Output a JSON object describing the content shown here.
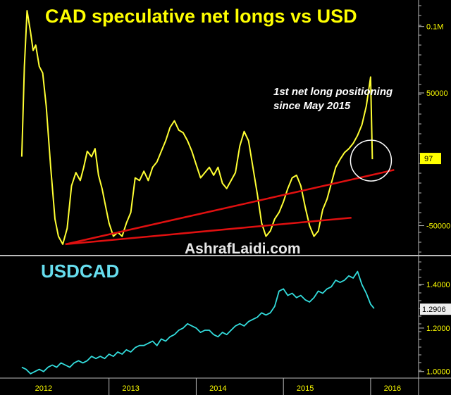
{
  "colors": {
    "background": "#000000",
    "positions_line": "#ffff33",
    "usdcad_line": "#33dddd",
    "trend_line": "#e01010",
    "title": "#ffff00",
    "usdcad_title": "#66ddee",
    "annotation": "#ffffff",
    "axis_text": "#ffff00",
    "divider": "#bbbbbb",
    "tag_bg": "#ffff00",
    "tag_text": "#000000",
    "usdcad_tag_bg": "#eeeeee"
  },
  "chart_data": [
    {
      "type": "line",
      "title": "CAD speculative net longs vs USD",
      "annotation": "1st net long positioning since May 2015",
      "annotation_lines": [
        "1st net long positioning",
        "since May 2015"
      ],
      "watermark": "AshrafLaidi.com",
      "last_value_tag": "97",
      "y_ticks": [
        {
          "value": 100000,
          "label": "0.1M"
        },
        {
          "value": 50000,
          "label": "50000"
        },
        {
          "value": -50000,
          "label": "-50000"
        }
      ],
      "ylim": [
        -72000,
        120000
      ],
      "series": [
        {
          "x": [
            2012.0,
            2012.03,
            2012.06,
            2012.1,
            2012.13,
            2012.16,
            2012.2,
            2012.24,
            2012.28,
            2012.33,
            2012.38,
            2012.42,
            2012.47,
            2012.52,
            2012.57,
            2012.62,
            2012.67,
            2012.71,
            2012.75,
            2012.8,
            2012.84,
            2012.88,
            2012.92,
            2012.96,
            2013.0,
            2013.05,
            2013.1,
            2013.15,
            2013.2,
            2013.25,
            2013.3,
            2013.35,
            2013.4,
            2013.45,
            2013.5,
            2013.55,
            2013.6,
            2013.65,
            2013.7,
            2013.75,
            2013.8,
            2013.85,
            2013.9,
            2013.95,
            2014.0,
            2014.05,
            2014.1,
            2014.15,
            2014.2,
            2014.25,
            2014.3,
            2014.35,
            2014.4,
            2014.45,
            2014.5,
            2014.55,
            2014.6,
            2014.65,
            2014.7,
            2014.75,
            2014.8,
            2014.85,
            2014.9,
            2014.95,
            2015.0,
            2015.05,
            2015.1,
            2015.15,
            2015.2,
            2015.25,
            2015.3,
            2015.35,
            2015.4,
            2015.45,
            2015.5,
            2015.55,
            2015.6,
            2015.65,
            2015.7,
            2015.75,
            2015.8,
            2015.85,
            2015.9,
            2015.95,
            2016.0,
            2016.02
          ],
          "y": [
            2000,
            70000,
            112000,
            96000,
            82000,
            86000,
            70000,
            65000,
            40000,
            -5000,
            -45000,
            -58000,
            -64000,
            -52000,
            -20000,
            -10000,
            -16000,
            -6000,
            6000,
            2000,
            8000,
            -12000,
            -22000,
            -35000,
            -48000,
            -58000,
            -55000,
            -58000,
            -48000,
            -40000,
            -14000,
            -16000,
            -9000,
            -16000,
            -6000,
            -2000,
            6000,
            14000,
            24000,
            29000,
            22000,
            20000,
            14000,
            6000,
            -4000,
            -14000,
            -10000,
            -6000,
            -12000,
            -6000,
            -18000,
            -22000,
            -16000,
            -10000,
            10000,
            21000,
            14000,
            -6000,
            -26000,
            -48000,
            -58000,
            -54000,
            -45000,
            -40000,
            -32000,
            -22000,
            -14000,
            -12000,
            -20000,
            -36000,
            -50000,
            -58000,
            -54000,
            -38000,
            -30000,
            -18000,
            -6000,
            0,
            5000,
            8000,
            12000,
            18000,
            26000,
            40000,
            62000,
            97
          ]
        }
      ],
      "trendlines": [
        {
          "from": [
            2012.5,
            -64000
          ],
          "to": [
            2016.27,
            -8000
          ]
        },
        {
          "from": [
            2012.5,
            -64000
          ],
          "to": [
            2015.78,
            -44000
          ]
        }
      ]
    },
    {
      "type": "line",
      "title": "USDCAD",
      "last_value_tag": "1.2906",
      "y_ticks": [
        {
          "value": 1.4,
          "label": "1.4000"
        },
        {
          "value": 1.2,
          "label": "1.2000"
        },
        {
          "value": 1.0,
          "label": "1.0000"
        }
      ],
      "ylim": [
        0.97,
        1.53
      ],
      "series": [
        {
          "x": [
            2012.0,
            2012.05,
            2012.1,
            2012.15,
            2012.2,
            2012.25,
            2012.3,
            2012.35,
            2012.4,
            2012.45,
            2012.5,
            2012.55,
            2012.6,
            2012.65,
            2012.7,
            2012.75,
            2012.8,
            2012.85,
            2012.9,
            2012.95,
            2013.0,
            2013.05,
            2013.1,
            2013.15,
            2013.2,
            2013.25,
            2013.3,
            2013.35,
            2013.4,
            2013.45,
            2013.5,
            2013.55,
            2013.6,
            2013.65,
            2013.7,
            2013.75,
            2013.8,
            2013.85,
            2013.9,
            2013.95,
            2014.0,
            2014.05,
            2014.1,
            2014.15,
            2014.2,
            2014.25,
            2014.3,
            2014.35,
            2014.4,
            2014.45,
            2014.5,
            2014.55,
            2014.6,
            2014.65,
            2014.7,
            2014.75,
            2014.8,
            2014.85,
            2014.9,
            2014.95,
            2015.0,
            2015.05,
            2015.1,
            2015.15,
            2015.2,
            2015.25,
            2015.3,
            2015.35,
            2015.4,
            2015.45,
            2015.5,
            2015.55,
            2015.6,
            2015.65,
            2015.7,
            2015.75,
            2015.8,
            2015.85,
            2015.9,
            2015.95,
            2016.0,
            2016.04
          ],
          "y": [
            1.02,
            1.01,
            0.99,
            1.0,
            1.01,
            1.0,
            1.02,
            1.03,
            1.02,
            1.04,
            1.03,
            1.02,
            1.04,
            1.05,
            1.04,
            1.05,
            1.07,
            1.06,
            1.07,
            1.06,
            1.08,
            1.07,
            1.09,
            1.08,
            1.1,
            1.09,
            1.11,
            1.12,
            1.12,
            1.13,
            1.14,
            1.12,
            1.15,
            1.14,
            1.16,
            1.17,
            1.19,
            1.2,
            1.22,
            1.21,
            1.2,
            1.18,
            1.19,
            1.19,
            1.17,
            1.16,
            1.18,
            1.17,
            1.19,
            1.21,
            1.22,
            1.21,
            1.23,
            1.24,
            1.25,
            1.27,
            1.26,
            1.27,
            1.3,
            1.37,
            1.38,
            1.35,
            1.36,
            1.34,
            1.35,
            1.33,
            1.32,
            1.34,
            1.37,
            1.36,
            1.38,
            1.39,
            1.42,
            1.41,
            1.42,
            1.44,
            1.43,
            1.46,
            1.4,
            1.36,
            1.31,
            1.29
          ]
        }
      ]
    }
  ],
  "x_axis": {
    "ticks": [
      {
        "value": 2012.0,
        "label": "2012"
      },
      {
        "value": 2013.0,
        "label": "2013"
      },
      {
        "value": 2014.0,
        "label": "2014"
      },
      {
        "value": 2015.0,
        "label": "2015"
      },
      {
        "value": 2016.0,
        "label": "2016"
      }
    ],
    "xlim": [
      2011.75,
      2016.55
    ]
  }
}
